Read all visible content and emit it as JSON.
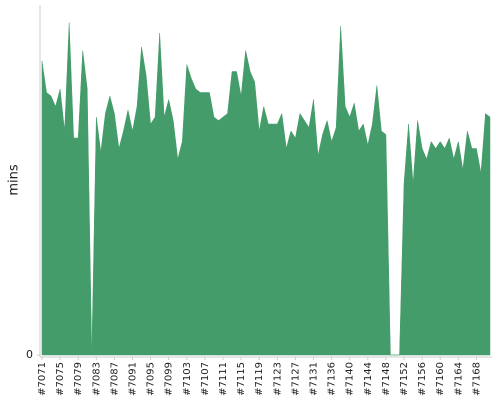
{
  "chart_data": {
    "type": "area",
    "y_label": "mins",
    "categories": [
      "#7071",
      null,
      null,
      null,
      "#7075",
      null,
      null,
      null,
      "#7079",
      null,
      null,
      null,
      "#7083",
      null,
      null,
      null,
      "#7087",
      null,
      null,
      null,
      "#7091",
      null,
      null,
      null,
      "#7095",
      null,
      null,
      null,
      "#7099",
      null,
      null,
      null,
      "#7103",
      null,
      null,
      null,
      "#7107",
      null,
      null,
      null,
      "#7111",
      null,
      null,
      null,
      "#7115",
      null,
      null,
      null,
      "#7119",
      null,
      null,
      null,
      "#7123",
      null,
      null,
      null,
      "#7127",
      null,
      null,
      null,
      "#7131",
      null,
      null,
      null,
      "#7136",
      null,
      null,
      null,
      "#7140",
      null,
      null,
      null,
      "#7144",
      null,
      null,
      null,
      "#7148",
      null,
      null,
      null,
      "#7152",
      null,
      null,
      null,
      "#7156",
      null,
      null,
      null,
      "#7160",
      null,
      null,
      null,
      "#7164",
      null,
      null,
      null,
      "#7168",
      null,
      null,
      null
    ],
    "values": [
      84,
      75,
      74,
      71,
      76,
      64,
      95,
      62,
      62,
      87,
      76,
      0,
      68,
      58,
      69,
      74,
      69,
      59,
      64,
      70,
      64,
      71,
      88,
      80,
      66,
      68,
      92,
      68,
      73,
      67,
      56,
      61,
      83,
      79,
      76,
      75,
      75,
      75,
      68,
      67,
      68,
      69,
      81,
      81,
      74,
      87,
      81,
      78,
      64,
      71,
      66,
      66,
      66,
      69,
      59,
      64,
      62,
      69,
      67,
      65,
      73,
      57,
      63,
      67,
      61,
      65,
      94,
      71,
      68,
      72,
      64,
      66,
      60,
      66,
      77,
      64,
      63,
      0,
      0,
      0,
      49,
      66,
      49,
      67,
      59,
      56,
      61,
      59,
      61,
      59,
      62,
      56,
      61,
      53,
      64,
      59,
      59,
      52,
      69,
      68
    ],
    "color": "#459c6b",
    "ylim": [
      0,
      100
    ],
    "yticks": [
      0
    ]
  }
}
